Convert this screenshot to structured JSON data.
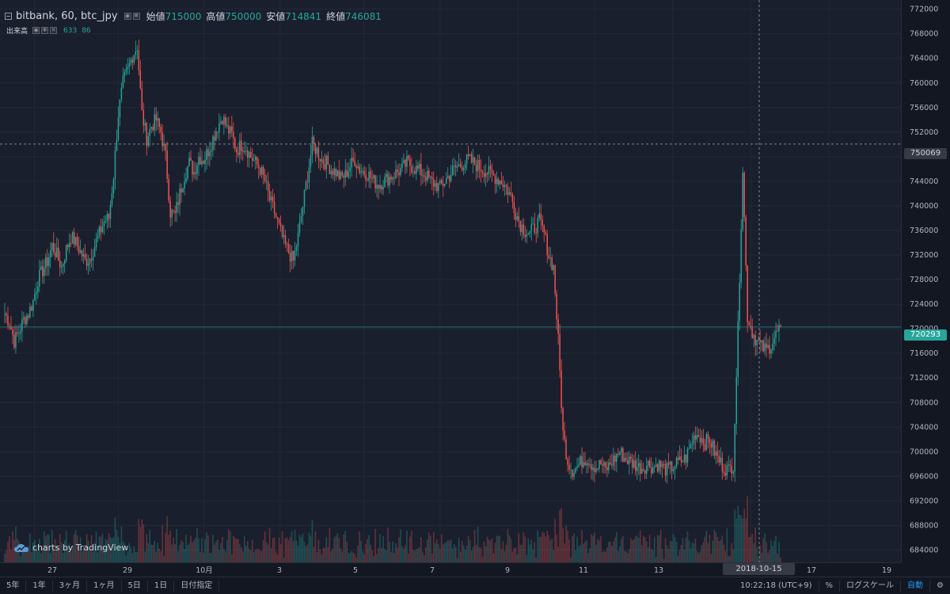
{
  "legend": {
    "symbol": "bitbank, 60, btc_jpy",
    "open_label": "始値",
    "open_value": "715000",
    "high_label": "高値",
    "high_value": "750000",
    "low_label": "安値",
    "low_value": "714841",
    "close_label": "終値",
    "close_value": "746081"
  },
  "volume_legend": {
    "label": "出来高",
    "value1": "633",
    "value2": "86"
  },
  "watermark": "charts by TradingView",
  "price_badges": {
    "crosshair": "750069",
    "last": "720293"
  },
  "crosshair_time": "2018-10-15 15:00:00",
  "bottom_bar": {
    "ranges": [
      "5年",
      "1年",
      "3ヶ月",
      "1ヶ月",
      "5日",
      "1日",
      "日付指定"
    ],
    "clock": "10:22:18 (UTC+9)",
    "percent": "%",
    "log_scale": "ログスケール",
    "auto": "自動"
  },
  "colors": {
    "up": "#26a69a",
    "down": "#ef5350",
    "background": "#1a1f2d"
  },
  "icons": [
    "collapse-icon",
    "eye-icon",
    "gear-icon",
    "close-icon",
    "tradingview-cloud-icon",
    "settings-gear-icon"
  ],
  "chart_data": {
    "type": "candlestick",
    "symbol": "btc_jpy",
    "interval": "60",
    "y_ticks": [
      684000,
      688000,
      692000,
      696000,
      700000,
      704000,
      708000,
      712000,
      716000,
      720000,
      724000,
      728000,
      732000,
      736000,
      740000,
      744000,
      748000,
      752000,
      756000,
      760000,
      764000,
      768000,
      772000
    ],
    "x_ticks": [
      {
        "label": "27",
        "bar": 16
      },
      {
        "label": "29",
        "bar": 61
      },
      {
        "label": "10月",
        "bar": 107
      },
      {
        "label": "3",
        "bar": 148
      },
      {
        "label": "5",
        "bar": 193
      },
      {
        "label": "7",
        "bar": 234
      },
      {
        "label": "9",
        "bar": 276
      },
      {
        "label": "11",
        "bar": 317
      },
      {
        "label": "13",
        "bar": 359
      },
      {
        "label": "15",
        "bar": 401
      },
      {
        "label": "17",
        "bar": 443
      },
      {
        "label": "19",
        "bar": 485
      }
    ],
    "ylim": [
      682000,
      773500
    ],
    "crosshair_price": 750069,
    "last_price": 720293,
    "closes": [
      722500,
      721000,
      718000,
      719500,
      721500,
      722500,
      724500,
      728000,
      729500,
      731000,
      733500,
      732000,
      730000,
      733000,
      735000,
      734000,
      732500,
      731000,
      731500,
      733500,
      735500,
      737500,
      738000,
      745000,
      755000,
      760000,
      762000,
      764500,
      766000,
      755000,
      751000,
      753000,
      754000,
      752000,
      748000,
      739000,
      738500,
      742000,
      745000,
      747000,
      745500,
      748000,
      747500,
      749000,
      751000,
      753000,
      754500,
      752500,
      751500,
      749000,
      750000,
      749500,
      748000,
      747000,
      746000,
      744000,
      741000,
      739000,
      736500,
      734000,
      732500,
      731000,
      735000,
      740000,
      745000,
      750000,
      749000,
      747500,
      747000,
      746000,
      745500,
      744500,
      745000,
      746500,
      747500,
      746000,
      745500,
      745000,
      744000,
      743500,
      744000,
      744500,
      745000,
      745500,
      746000,
      747000,
      746500,
      746000,
      745500,
      745000,
      744000,
      743500,
      743000,
      744000,
      745000,
      746000,
      746500,
      747000,
      747500,
      747000,
      746500,
      746000,
      745500,
      745000,
      744500,
      744000,
      743000,
      741500,
      739000,
      737000,
      736000,
      735500,
      736500,
      737500,
      735500,
      732000,
      730000,
      718000,
      703000,
      698500,
      697000,
      697500,
      698500,
      699000,
      698000,
      697500,
      698000,
      697000,
      698000,
      699000,
      700000,
      699000,
      698500,
      698000,
      697500,
      697500,
      698000,
      697500,
      698000,
      697500,
      697000,
      697500,
      698000,
      698500,
      699000,
      701000,
      703000,
      702500,
      701500,
      702000,
      700000,
      698500,
      697500,
      697000,
      698000,
      720000,
      746081,
      722000,
      719500,
      718000,
      717000,
      716500,
      717500,
      719000,
      720293
    ]
  }
}
